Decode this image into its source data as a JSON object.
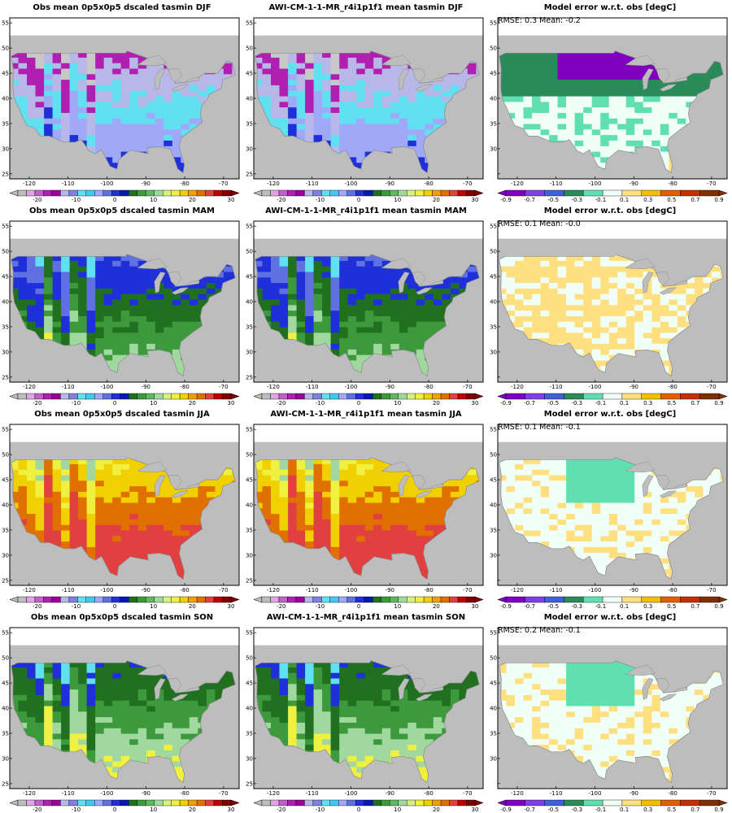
{
  "colorbars": {
    "temperature": {
      "labels": [
        "-20",
        "-10",
        "0",
        "10",
        "20",
        "30"
      ],
      "colors": [
        "#bdbdbd",
        "#e0a6e0",
        "#c060c8",
        "#b020b0",
        "#9a009a",
        "#b8b8e8",
        "#8080e0",
        "#60e0f0",
        "#40c8f0",
        "#a0a8f8",
        "#6070e0",
        "#2030d8",
        "#0818b0",
        "#207020",
        "#3c9a3c",
        "#60b860",
        "#a0d8a0",
        "#d8f080",
        "#f0f040",
        "#f0d000",
        "#f0a000",
        "#e07000",
        "#e04040",
        "#c00000",
        "#800000"
      ]
    },
    "error": {
      "labels": [
        "-0.9",
        "-0.7",
        "-0.5",
        "-0.3",
        "-0.1",
        "0.1",
        "0.3",
        "0.5",
        "0.7",
        "0.9"
      ],
      "colors": [
        "#8000c0",
        "#8040e0",
        "#4060d8",
        "#2a8a5a",
        "#60e0b0",
        "#f0fff8",
        "#ffe080",
        "#f0c000",
        "#e06000",
        "#c03000",
        "#803000"
      ]
    }
  },
  "x_ticks": [
    "-120",
    "-110",
    "-100",
    "-90",
    "-80",
    "-70"
  ],
  "y_ticks": [
    "25",
    "30",
    "35",
    "40",
    "45",
    "50",
    "55"
  ],
  "rows": [
    {
      "obs_title": "Obs mean 0p5x0p5 dscaled tasmin DJF",
      "model_title": "AWI-CM-1-1-MR_r4i1p1f1 mean tasmin DJF",
      "err_title": "Model error w.r.t. obs [degC]",
      "err_stats": "RMSE: 0.3   Mean: -0.2",
      "obs_palette": [
        "#c8c8c8",
        "#b020b0",
        "#b8b8e8",
        "#60e0f0",
        "#a0a8f8",
        "#2030d8",
        "#3c9a3c",
        "#a0d8a0"
      ],
      "err_palette": [
        "#8000c0",
        "#4060d8",
        "#2a8a5a",
        "#60e0b0",
        "#f0fff8",
        "#ffe080"
      ]
    },
    {
      "obs_title": "Obs mean 0p5x0p5 dscaled tasmin MAM",
      "model_title": "AWI-CM-1-1-MR_r4i1p1f1 mean tasmin MAM",
      "err_title": "Model error w.r.t. obs [degC]",
      "err_stats": "RMSE: 0.1   Mean: -0.0",
      "obs_palette": [
        "#8080e0",
        "#60e0f0",
        "#6070e0",
        "#2030d8",
        "#207020",
        "#3c9a3c",
        "#a0d8a0",
        "#f0f040"
      ],
      "err_palette": [
        "#60e0b0",
        "#f0fff8",
        "#ffe080"
      ]
    },
    {
      "obs_title": "Obs mean 0p5x0p5 dscaled tasmin JJA",
      "model_title": "AWI-CM-1-1-MR_r4i1p1f1 mean tasmin JJA",
      "err_title": "Model error w.r.t. obs [degC]",
      "err_stats": "RMSE: 0.1   Mean: -0.1",
      "obs_palette": [
        "#2030d8",
        "#3c9a3c",
        "#60b860",
        "#a0d8a0",
        "#f0f040",
        "#f0d000",
        "#e07000",
        "#e04040"
      ],
      "err_palette": [
        "#2a8a5a",
        "#60e0b0",
        "#f0fff8",
        "#ffe080"
      ]
    },
    {
      "obs_title": "Obs mean 0p5x0p5 dscaled tasmin SON",
      "model_title": "AWI-CM-1-1-MR_r4i1p1f1 mean tasmin SON",
      "err_title": "Model error w.r.t. obs [degC]",
      "err_stats": "RMSE: 0.2   Mean: -0.1",
      "obs_palette": [
        "#a0a8f8",
        "#60e0f0",
        "#2030d8",
        "#207020",
        "#3c9a3c",
        "#a0d8a0",
        "#f0f040",
        "#f0d000"
      ],
      "err_palette": [
        "#2a8a5a",
        "#60e0b0",
        "#f0fff8",
        "#ffe080"
      ]
    }
  ]
}
